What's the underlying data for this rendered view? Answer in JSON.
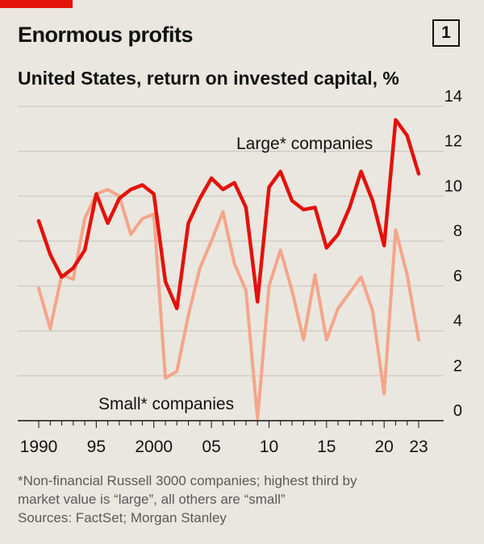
{
  "header": {
    "title": "Enormous profits",
    "subtitle": "United States, return on invested capital, %",
    "chart_number": "1"
  },
  "footnote": {
    "line1": "*Non-financial Russell 3000 companies; highest third by",
    "line2": "market value is “large”, all others are “small”",
    "sources": "Sources: FactSet; Morgan Stanley"
  },
  "colors": {
    "background": "#e9e7e0",
    "large": "#e3120b",
    "small": "#f5a58a",
    "grid": "#c6c3bb",
    "axis": "#121212",
    "brand": "#e3120b"
  },
  "chart_data": {
    "type": "line",
    "x": [
      1990,
      1991,
      1992,
      1993,
      1994,
      1995,
      1996,
      1997,
      1998,
      1999,
      2000,
      2001,
      2002,
      2003,
      2004,
      2005,
      2006,
      2007,
      2008,
      2009,
      2010,
      2011,
      2012,
      2013,
      2014,
      2015,
      2016,
      2017,
      2018,
      2019,
      2020,
      2021,
      2022,
      2023
    ],
    "series": [
      {
        "name": "Large* companies",
        "color": "#e3120b",
        "values": [
          8.9,
          7.4,
          6.4,
          6.8,
          7.6,
          10.1,
          8.8,
          9.9,
          10.3,
          10.5,
          10.1,
          6.2,
          5.0,
          8.8,
          9.9,
          10.8,
          10.3,
          10.6,
          9.5,
          5.3,
          10.4,
          11.1,
          9.8,
          9.4,
          9.5,
          7.7,
          8.3,
          9.5,
          11.1,
          9.8,
          7.8,
          13.4,
          12.7,
          11.0
        ]
      },
      {
        "name": "Small* companies",
        "color": "#f5a58a",
        "values": [
          5.9,
          4.1,
          6.5,
          6.3,
          9.0,
          10.1,
          10.3,
          10.0,
          8.3,
          9.0,
          9.2,
          1.9,
          2.2,
          4.7,
          6.8,
          8.0,
          9.3,
          7.0,
          5.8,
          0.1,
          6.0,
          7.6,
          5.8,
          3.6,
          6.5,
          3.6,
          5.0,
          5.7,
          6.4,
          4.9,
          1.2,
          8.5,
          6.5,
          3.6
        ]
      }
    ],
    "ylim": [
      0,
      14
    ],
    "yticks": [
      0,
      2,
      4,
      6,
      8,
      10,
      12,
      14
    ],
    "xticks": [
      {
        "value": 1990,
        "label": "1990"
      },
      {
        "value": 1995,
        "label": "95"
      },
      {
        "value": 2000,
        "label": "2000"
      },
      {
        "value": 2005,
        "label": "05"
      },
      {
        "value": 2010,
        "label": "10"
      },
      {
        "value": 2015,
        "label": "15"
      },
      {
        "value": 2020,
        "label": "20"
      },
      {
        "value": 2023,
        "label": "23"
      }
    ],
    "grid": true,
    "y_axis_side": "right",
    "annotations": [
      {
        "text": "Large* companies",
        "series": 0
      },
      {
        "text": "Small* companies",
        "series": 1
      }
    ]
  }
}
